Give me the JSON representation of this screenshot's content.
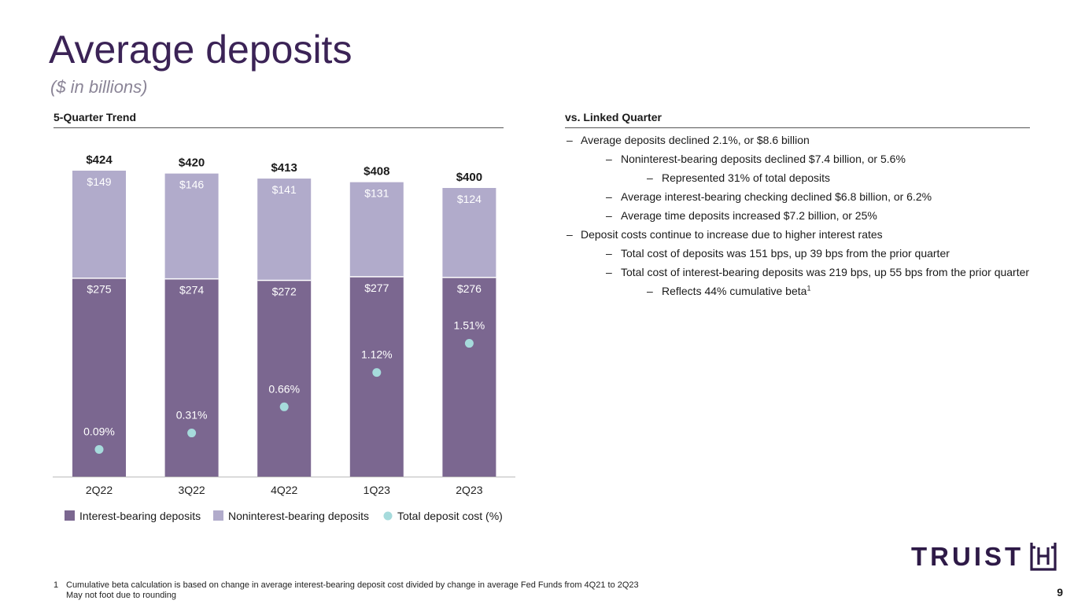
{
  "header": {
    "title": "Average deposits",
    "subtitle": "($ in billions)"
  },
  "left_section": {
    "heading": "5-Quarter Trend"
  },
  "right_section": {
    "heading": "vs. Linked Quarter",
    "bullets": [
      {
        "level": 1,
        "dash": "–",
        "text": "Average deposits declined 2.1%, or $8.6 billion"
      },
      {
        "level": 2,
        "dash": "–",
        "text": "Noninterest-bearing deposits declined $7.4 billion, or 5.6%"
      },
      {
        "level": 3,
        "dash": "–",
        "text": "Represented 31% of total deposits"
      },
      {
        "level": 2,
        "dash": "–",
        "text": "Average interest-bearing checking declined $6.8 billion, or 6.2%"
      },
      {
        "level": 2,
        "dash": "–",
        "text": "Average time deposits increased $7.2 billion, or 25%"
      },
      {
        "level": 1,
        "dash": "–",
        "text": "Deposit costs continue to increase due to higher interest rates"
      },
      {
        "level": 2,
        "dash": "–",
        "text": "Total cost of deposits was 151 bps, up 39 bps from the prior quarter"
      },
      {
        "level": 2,
        "dash": "–",
        "text": "Total cost of interest-bearing deposits was 219 bps, up 55 bps from the prior quarter"
      },
      {
        "level": 3,
        "dash": "–",
        "text": "Reflects 44% cumulative beta",
        "sup": "1"
      }
    ]
  },
  "chart_data": {
    "type": "bar",
    "stacked": true,
    "categories": [
      "2Q22",
      "3Q22",
      "4Q22",
      "1Q23",
      "2Q23"
    ],
    "series": [
      {
        "name": "Interest-bearing deposits",
        "values": [
          275,
          274,
          272,
          277,
          276
        ],
        "labels": [
          "$275",
          "$274",
          "$272",
          "$277",
          "$276"
        ],
        "color": "#7b6790"
      },
      {
        "name": "Noninterest-bearing deposits",
        "values": [
          149,
          146,
          141,
          131,
          124
        ],
        "labels": [
          "$149",
          "$146",
          "$141",
          "$131",
          "$124"
        ],
        "color": "#b1abcb"
      }
    ],
    "totals": [
      424,
      420,
      413,
      408,
      400
    ],
    "total_labels": [
      "$424",
      "$420",
      "$413",
      "$408",
      "$400"
    ],
    "cost_series": {
      "name": "Total deposit cost (%)",
      "values": [
        0.09,
        0.31,
        0.66,
        1.12,
        1.51
      ],
      "labels": [
        "0.09%",
        "0.31%",
        "0.66%",
        "1.12%",
        "1.51%"
      ],
      "color": "#a6dbdc"
    },
    "ylim": [
      0,
      424
    ],
    "legend_position": "bottom",
    "grid": false
  },
  "footnote": {
    "number": "1",
    "line1": "Cumulative beta calculation is based on change in average interest-bearing deposit cost divided by change in average Fed Funds from 4Q21 to 2Q23",
    "line2": "May not foot due to rounding"
  },
  "page_number": "9",
  "logo": {
    "text": "TRUIST"
  },
  "colors": {
    "title": "#3b2356",
    "interest_bearing": "#7b6790",
    "noninterest_bearing": "#b1abcb",
    "deposit_cost": "#a6dbdc"
  }
}
